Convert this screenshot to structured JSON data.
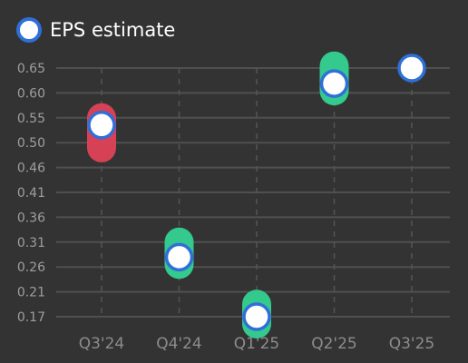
{
  "legend": {
    "label": "EPS estimate"
  },
  "colors": {
    "background": "#333333",
    "grid": "#505050",
    "beat": "#34c98d",
    "miss": "#d64155",
    "estimate_fill": "#ffffff",
    "estimate_border": "#2f6fd8"
  },
  "chart_data": {
    "type": "scatter",
    "categories": [
      "Q3'24",
      "Q4'24",
      "Q1'25",
      "Q2'25",
      "Q3'25"
    ],
    "y_ticks": [
      "0.17",
      "0.21",
      "0.26",
      "0.31",
      "0.36",
      "0.41",
      "0.46",
      "0.50",
      "0.55",
      "0.60",
      "0.65"
    ],
    "ylim": [
      0.17,
      0.65
    ],
    "grid": true,
    "legend_position": "top-left",
    "series": [
      {
        "name": "EPS estimate",
        "values": [
          0.54,
          0.285,
          0.17,
          0.62,
          0.65
        ]
      },
      {
        "values": [
          0.51,
          0.3,
          0.18,
          0.64,
          null
        ]
      }
    ]
  }
}
